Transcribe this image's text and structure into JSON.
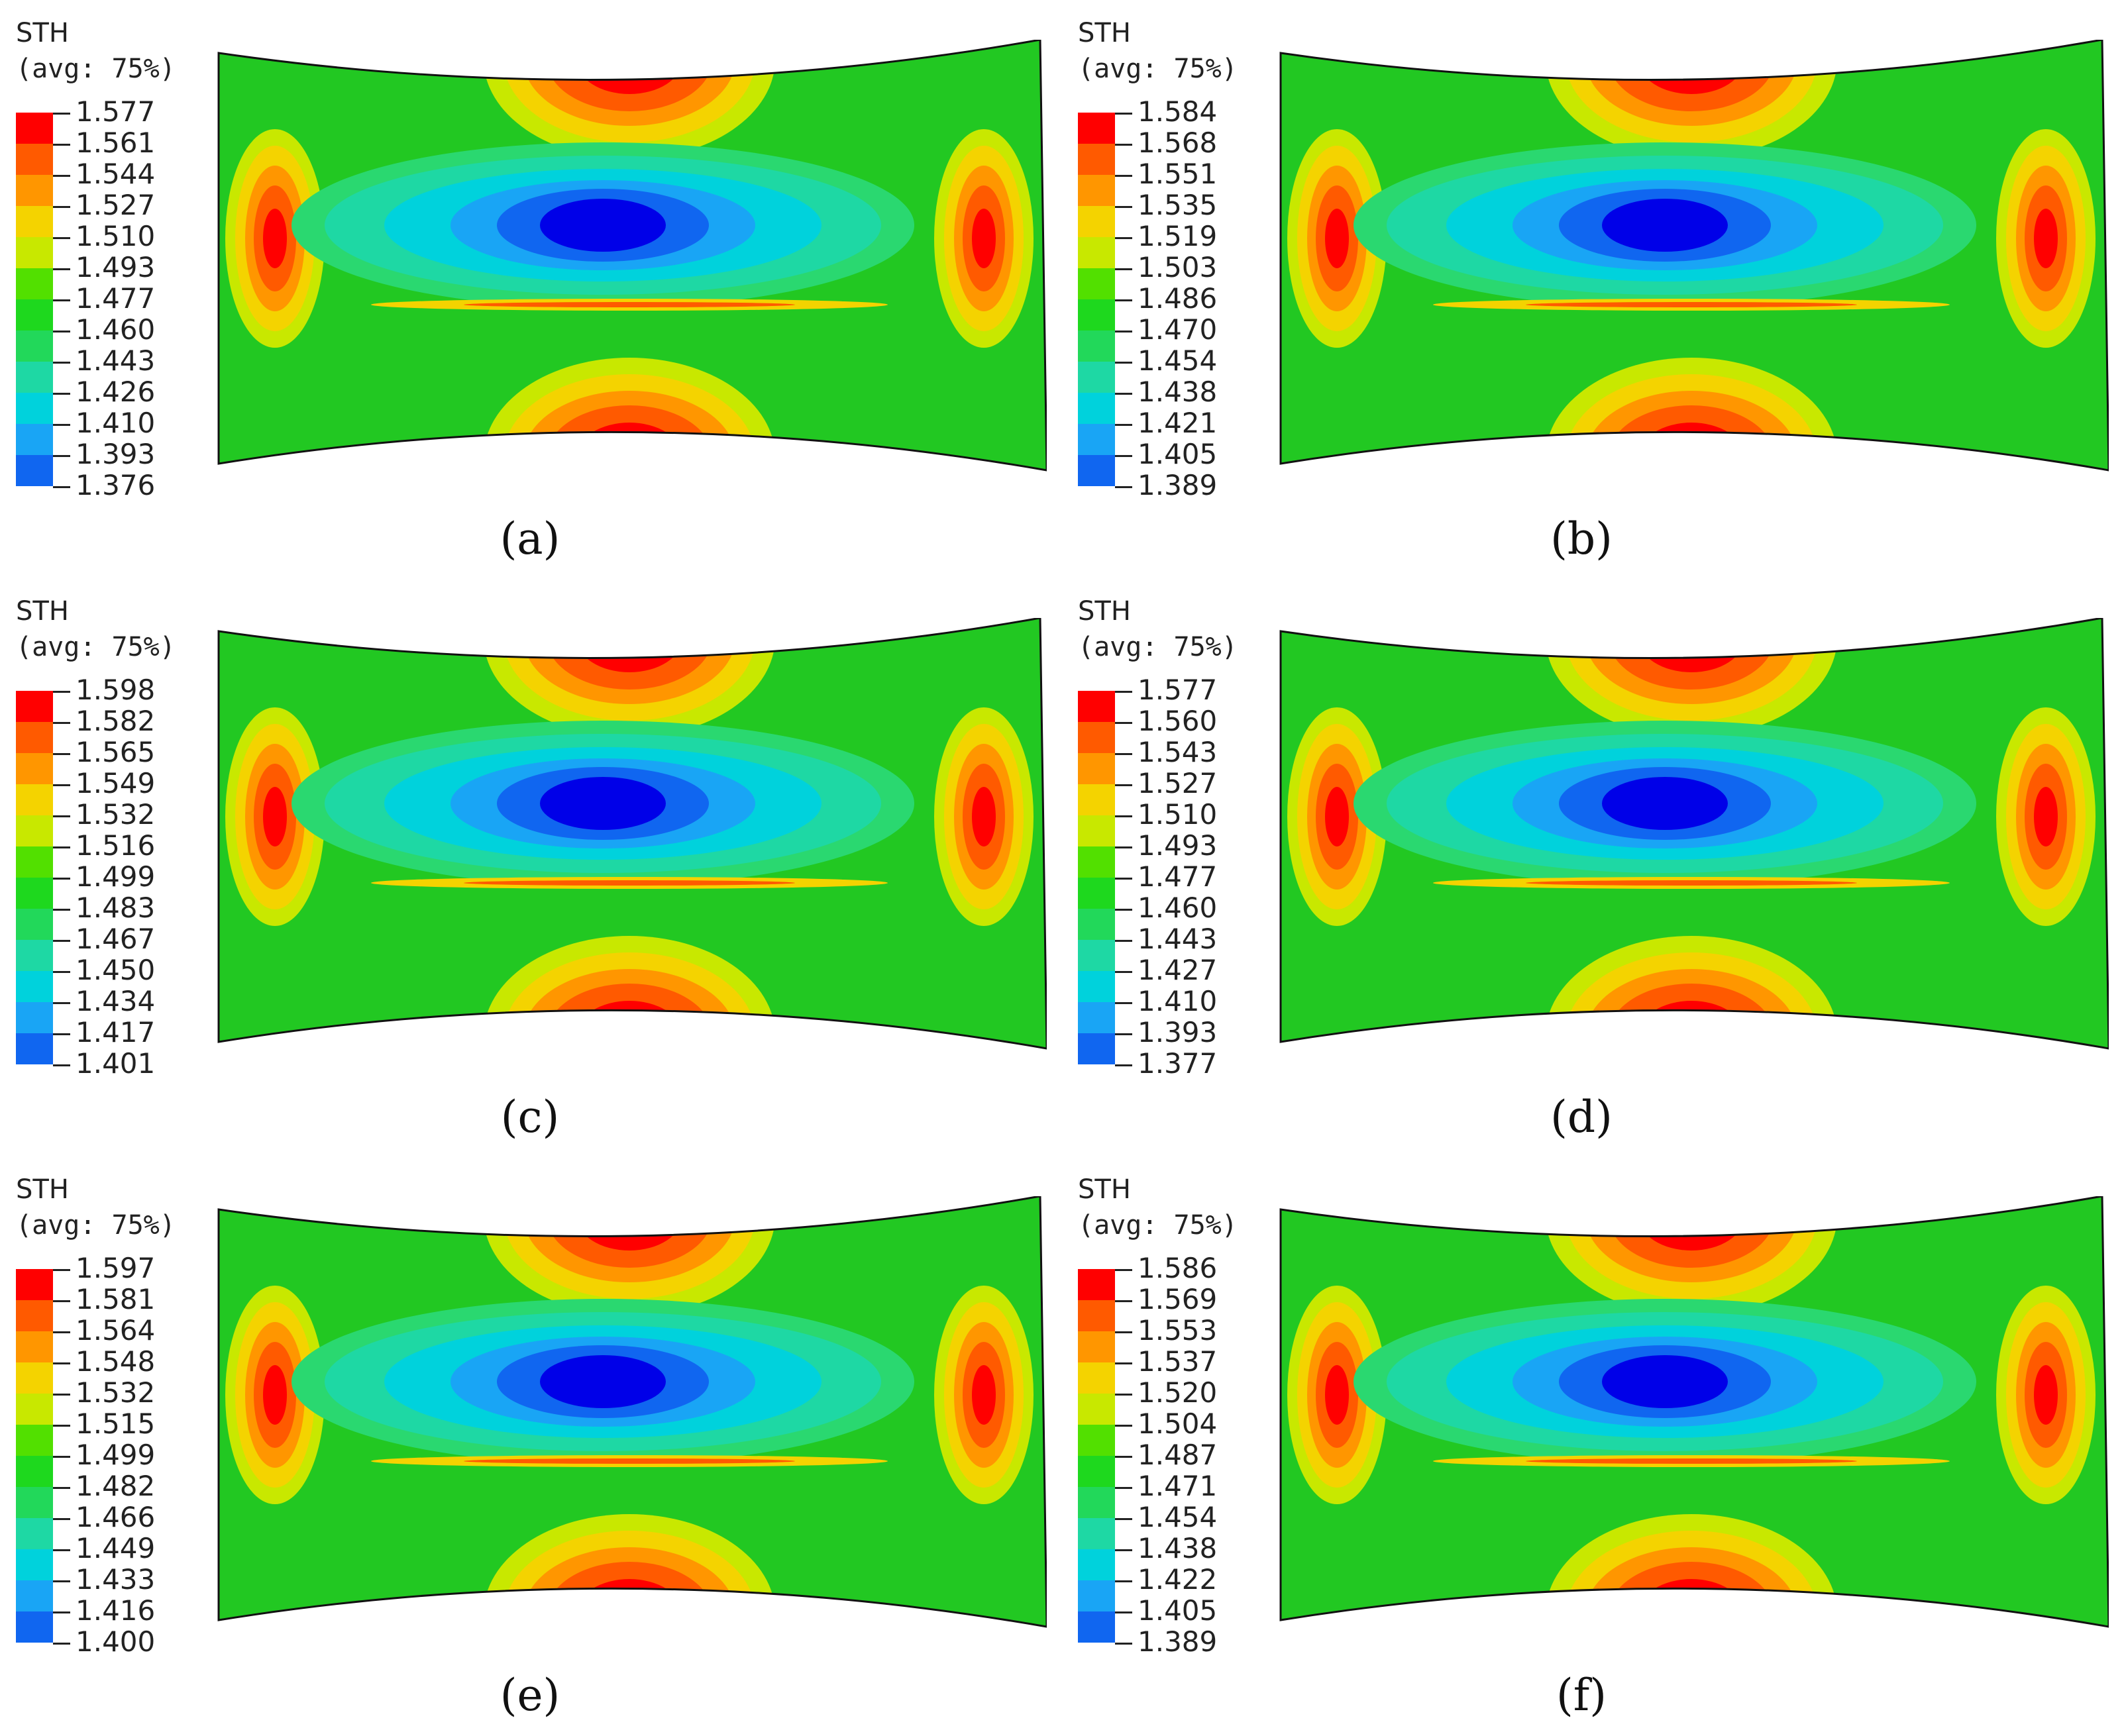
{
  "colors": {
    "scale": [
      "#ff0000",
      "#ff5a00",
      "#ff9600",
      "#f4d300",
      "#c8e800",
      "#52e000",
      "#1ed81e",
      "#22d85a",
      "#1ed8a4",
      "#00d2dc",
      "#19a5f5",
      "#1066f0",
      "#0000e8"
    ],
    "field": "#22c822",
    "outline": "#111111"
  },
  "panels": [
    {
      "title": "STH",
      "subtitle": "(avg: 75%)",
      "label": "(a)",
      "legend_values": [
        "1.577",
        "1.561",
        "1.544",
        "1.527",
        "1.510",
        "1.493",
        "1.477",
        "1.460",
        "1.443",
        "1.426",
        "1.410",
        "1.393",
        "1.376"
      ]
    },
    {
      "title": "STH",
      "subtitle": "(avg: 75%)",
      "label": "(b)",
      "legend_values": [
        "1.584",
        "1.568",
        "1.551",
        "1.535",
        "1.519",
        "1.503",
        "1.486",
        "1.470",
        "1.454",
        "1.438",
        "1.421",
        "1.405",
        "1.389"
      ]
    },
    {
      "title": "STH",
      "subtitle": "(avg: 75%)",
      "label": "(c)",
      "legend_values": [
        "1.598",
        "1.582",
        "1.565",
        "1.549",
        "1.532",
        "1.516",
        "1.499",
        "1.483",
        "1.467",
        "1.450",
        "1.434",
        "1.417",
        "1.401"
      ]
    },
    {
      "title": "STH",
      "subtitle": "(avg: 75%)",
      "label": "(d)",
      "legend_values": [
        "1.577",
        "1.560",
        "1.543",
        "1.527",
        "1.510",
        "1.493",
        "1.477",
        "1.460",
        "1.443",
        "1.427",
        "1.410",
        "1.393",
        "1.377"
      ]
    },
    {
      "title": "STH",
      "subtitle": "(avg: 75%)",
      "label": "(e)",
      "legend_values": [
        "1.597",
        "1.581",
        "1.564",
        "1.548",
        "1.532",
        "1.515",
        "1.499",
        "1.482",
        "1.466",
        "1.449",
        "1.433",
        "1.416",
        "1.400"
      ]
    },
    {
      "title": "STH",
      "subtitle": "(avg: 75%)",
      "label": "(f)",
      "legend_values": [
        "1.586",
        "1.569",
        "1.553",
        "1.537",
        "1.520",
        "1.504",
        "1.487",
        "1.471",
        "1.454",
        "1.438",
        "1.422",
        "1.405",
        "1.389"
      ]
    }
  ]
}
